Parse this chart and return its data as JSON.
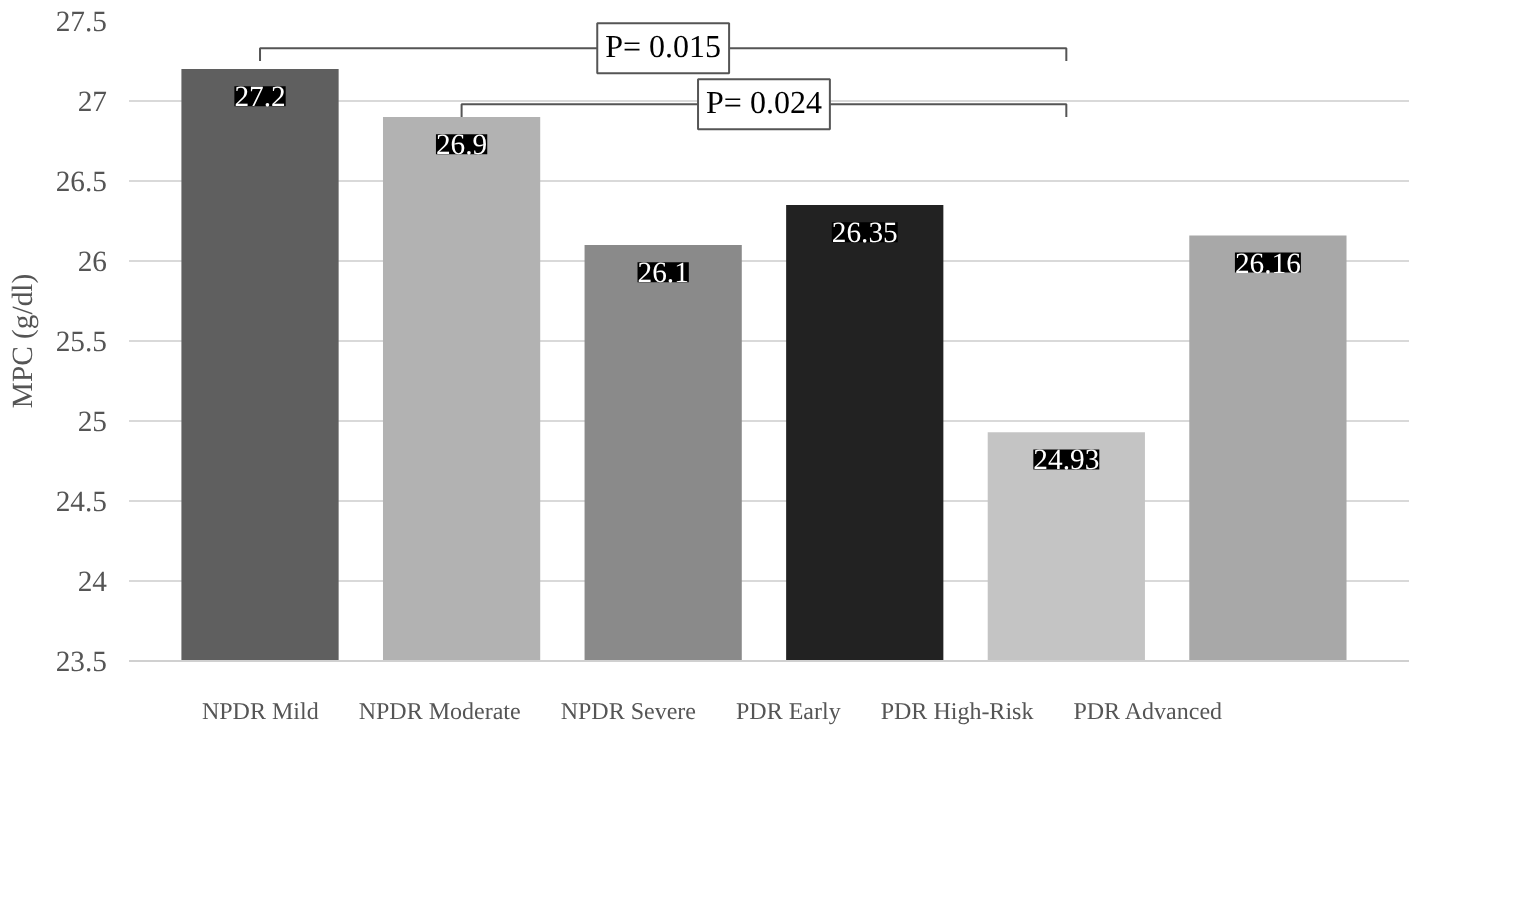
{
  "chart_data": {
    "type": "bar",
    "ylabel": "MPC (g/dl)",
    "categories": [
      null,
      null,
      null,
      null,
      null,
      null
    ],
    "series": [
      {
        "name": "NPDR Mild",
        "color": "#5f5f5f",
        "values": [
          27.2,
          null,
          null,
          null,
          null,
          null
        ]
      },
      {
        "name": "NPDR Moderate",
        "color": "#b2b2b2",
        "values": [
          null,
          26.9,
          null,
          null,
          null,
          null
        ]
      },
      {
        "name": "NPDR Severe",
        "color": "#8a8a8a",
        "values": [
          null,
          null,
          26.1,
          null,
          null,
          null
        ]
      },
      {
        "name": "PDR Early",
        "color": "#222222",
        "values": [
          null,
          null,
          null,
          26.35,
          null,
          null
        ]
      },
      {
        "name": "PDR High-Risk",
        "color": "#c4c4c4",
        "values": [
          null,
          null,
          null,
          null,
          24.93,
          null
        ]
      },
      {
        "name": "PDR Advanced",
        "color": "#a8a8a8",
        "values": [
          null,
          null,
          null,
          null,
          null,
          26.16
        ]
      }
    ],
    "ylim": [
      23.5,
      27.5
    ],
    "yticks": [
      23.5,
      24,
      24.5,
      25,
      25.5,
      26,
      26.5,
      27,
      27.5
    ],
    "grid": "y",
    "legend": "bottom",
    "data_labels": true,
    "annotations": [
      "P= 0.015",
      "P= 0.024"
    ]
  }
}
